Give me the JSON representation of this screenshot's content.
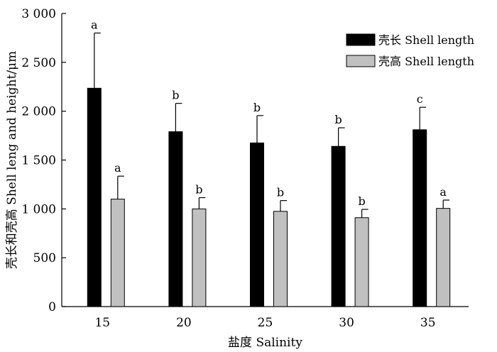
{
  "chart_data": {
    "type": "bar",
    "xlabel": "盐度 Salinity",
    "ylabel": "壳长和壳高 Shell leng and height/μm",
    "ylim": [
      0,
      3000
    ],
    "yticks": [
      0,
      500,
      1000,
      1500,
      2000,
      2500,
      3000
    ],
    "ytick_labels": [
      "0",
      "500",
      "1 000",
      "1 500",
      "2 000",
      "2 500",
      "3 000"
    ],
    "categories": [
      "15",
      "20",
      "25",
      "30",
      "35"
    ],
    "legend_position": "top-right",
    "grid": false,
    "series": [
      {
        "name": "壳长 Shell length",
        "color": "#000000",
        "values": [
          2235,
          1790,
          1675,
          1640,
          1810
        ],
        "errors": [
          565,
          290,
          280,
          190,
          230
        ],
        "significance": [
          "a",
          "b",
          "b",
          "b",
          "c"
        ]
      },
      {
        "name": "壳高 Shell length",
        "color": "#c0c0c0",
        "values": [
          1100,
          1000,
          975,
          910,
          1005
        ],
        "errors": [
          235,
          115,
          110,
          85,
          85
        ],
        "significance": [
          "a",
          "b",
          "b",
          "b",
          "a"
        ]
      }
    ]
  }
}
